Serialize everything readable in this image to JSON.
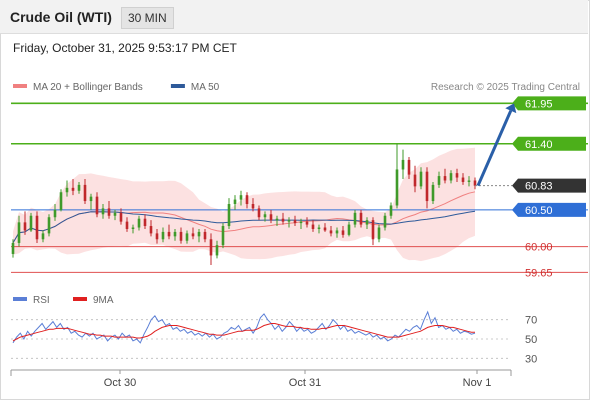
{
  "header": {
    "title": "Crude Oil (WTI)",
    "interval": "30 MIN"
  },
  "datetime": "Friday, October 31, 2025 9:53:17 PM CET",
  "legend_main": [
    {
      "label": "MA 20 + Bollinger Bands",
      "color": "#f08080"
    },
    {
      "label": "MA 50",
      "color": "#2e5a9a"
    }
  ],
  "legend_rsi": [
    {
      "label": "RSI",
      "color": "#5b7fd6"
    },
    {
      "label": "9MA",
      "color": "#e02020"
    }
  ],
  "copyright": "Research © 2025 Trading Central",
  "colors": {
    "resistance": "#4caf1a",
    "pivot": "#2f6fd6",
    "support": "#e05050",
    "last": "#333333",
    "arrow": "#2a5fa8",
    "candle_up": "#3f9a2a",
    "candle_down": "#c0282c",
    "band_fill": "#fbd9d9"
  },
  "chart_data": {
    "type": "candlestick",
    "price_axis": {
      "min": 59.6,
      "max": 62.05
    },
    "levels": [
      {
        "value": 61.95,
        "label": "61.95",
        "kind": "resistance"
      },
      {
        "value": 61.4,
        "label": "61.40",
        "kind": "resistance"
      },
      {
        "value": 60.5,
        "label": "60.50",
        "kind": "pivot"
      },
      {
        "value": 60.0,
        "label": "60.00",
        "kind": "support"
      },
      {
        "value": 59.65,
        "label": "59.65",
        "kind": "support"
      }
    ],
    "last_price": {
      "value": 60.83,
      "label": "60.83"
    },
    "projection": {
      "from": 60.83,
      "to": 61.95
    },
    "x_labels": [
      "Oct 30",
      "Oct 31",
      "Nov 1"
    ],
    "candles": [
      [
        59.9,
        60.1,
        59.85,
        60.05
      ],
      [
        60.05,
        60.42,
        60.0,
        60.33
      ],
      [
        60.33,
        60.48,
        60.16,
        60.22
      ],
      [
        60.22,
        60.46,
        60.2,
        60.42
      ],
      [
        60.42,
        60.48,
        60.05,
        60.1
      ],
      [
        60.1,
        60.22,
        60.06,
        60.18
      ],
      [
        60.18,
        60.44,
        60.14,
        60.4
      ],
      [
        60.4,
        60.58,
        60.35,
        60.5
      ],
      [
        60.5,
        60.78,
        60.48,
        60.74
      ],
      [
        60.74,
        60.9,
        60.68,
        60.8
      ],
      [
        60.8,
        60.92,
        60.7,
        60.76
      ],
      [
        60.76,
        60.88,
        60.72,
        60.84
      ],
      [
        60.84,
        60.92,
        60.58,
        60.62
      ],
      [
        60.62,
        60.72,
        60.5,
        60.68
      ],
      [
        60.68,
        60.74,
        60.4,
        60.44
      ],
      [
        60.44,
        60.58,
        60.38,
        60.52
      ],
      [
        60.52,
        60.62,
        60.38,
        60.42
      ],
      [
        60.42,
        60.5,
        60.36,
        60.46
      ],
      [
        60.46,
        60.52,
        60.3,
        60.34
      ],
      [
        60.34,
        60.4,
        60.2,
        60.24
      ],
      [
        60.24,
        60.3,
        60.18,
        60.26
      ],
      [
        60.26,
        60.42,
        60.22,
        60.38
      ],
      [
        60.38,
        60.44,
        60.24,
        60.28
      ],
      [
        60.28,
        60.36,
        60.14,
        60.18
      ],
      [
        60.18,
        60.24,
        60.04,
        60.1
      ],
      [
        60.1,
        60.26,
        60.06,
        60.2
      ],
      [
        60.2,
        60.3,
        60.1,
        60.14
      ],
      [
        60.14,
        60.24,
        60.08,
        60.2
      ],
      [
        60.2,
        60.26,
        60.04,
        60.08
      ],
      [
        60.08,
        60.22,
        60.04,
        60.18
      ],
      [
        60.18,
        60.26,
        60.1,
        60.14
      ],
      [
        60.14,
        60.24,
        60.06,
        60.2
      ],
      [
        60.2,
        60.24,
        60.06,
        60.1
      ],
      [
        60.1,
        60.18,
        59.75,
        59.88
      ],
      [
        59.88,
        60.08,
        59.84,
        60.02
      ],
      [
        60.02,
        60.32,
        59.98,
        60.28
      ],
      [
        60.28,
        60.66,
        60.24,
        60.58
      ],
      [
        60.58,
        60.7,
        60.5,
        60.64
      ],
      [
        60.64,
        60.76,
        60.56,
        60.7
      ],
      [
        60.7,
        60.74,
        60.52,
        60.58
      ],
      [
        60.58,
        60.66,
        60.48,
        60.52
      ],
      [
        60.52,
        60.56,
        60.36,
        60.4
      ],
      [
        60.4,
        60.48,
        60.34,
        60.44
      ],
      [
        60.44,
        60.5,
        60.32,
        60.36
      ],
      [
        60.36,
        60.42,
        60.28,
        60.38
      ],
      [
        60.38,
        60.46,
        60.3,
        60.34
      ],
      [
        60.34,
        60.4,
        60.26,
        60.36
      ],
      [
        60.36,
        60.42,
        60.28,
        60.32
      ],
      [
        60.32,
        60.38,
        60.24,
        60.34
      ],
      [
        60.34,
        60.4,
        60.26,
        60.3
      ],
      [
        60.3,
        60.36,
        60.2,
        60.24
      ],
      [
        60.24,
        60.3,
        60.18,
        60.26
      ],
      [
        60.26,
        60.32,
        60.2,
        60.22
      ],
      [
        60.22,
        60.28,
        60.14,
        60.18
      ],
      [
        60.18,
        60.26,
        60.12,
        60.22
      ],
      [
        60.22,
        60.28,
        60.12,
        60.16
      ],
      [
        60.16,
        60.34,
        60.14,
        60.3
      ],
      [
        60.3,
        60.5,
        60.26,
        60.46
      ],
      [
        60.46,
        60.5,
        60.26,
        60.3
      ],
      [
        60.3,
        60.4,
        60.24,
        60.36
      ],
      [
        60.36,
        60.4,
        60.02,
        60.1
      ],
      [
        60.1,
        60.3,
        60.06,
        60.26
      ],
      [
        60.26,
        60.46,
        60.22,
        60.42
      ],
      [
        60.42,
        60.6,
        60.38,
        60.56
      ],
      [
        60.56,
        61.4,
        60.52,
        61.05
      ],
      [
        61.05,
        61.32,
        60.92,
        61.18
      ],
      [
        61.18,
        61.22,
        60.92,
        60.98
      ],
      [
        60.98,
        61.1,
        60.74,
        60.82
      ],
      [
        60.82,
        61.08,
        60.78,
        61.02
      ],
      [
        61.02,
        61.08,
        60.52,
        60.62
      ],
      [
        60.62,
        60.88,
        60.58,
        60.84
      ],
      [
        60.84,
        61.02,
        60.8,
        60.96
      ],
      [
        60.96,
        61.06,
        60.86,
        60.9
      ],
      [
        60.9,
        61.04,
        60.86,
        61.0
      ],
      [
        61.0,
        61.06,
        60.88,
        60.94
      ],
      [
        60.94,
        61.0,
        60.84,
        60.88
      ],
      [
        60.88,
        60.96,
        60.82,
        60.9
      ],
      [
        60.9,
        60.94,
        60.78,
        60.83
      ]
    ],
    "rsi_axis": {
      "min": 20,
      "max": 80,
      "ticks": [
        70,
        50,
        30
      ]
    },
    "rsi": [
      46,
      52,
      56,
      50,
      58,
      53,
      58,
      62,
      66,
      60,
      64,
      68,
      62,
      66,
      60,
      62,
      56,
      58,
      54,
      52,
      56,
      53,
      56,
      50,
      52,
      54,
      48,
      52,
      54,
      50,
      56,
      52,
      54,
      48,
      50,
      46,
      55,
      62,
      70,
      74,
      68,
      70,
      64,
      66,
      60,
      62,
      58,
      60,
      56,
      58,
      54,
      56,
      53,
      56,
      52,
      55,
      50,
      52,
      56,
      58,
      62,
      60,
      64,
      58,
      60,
      62,
      56,
      62,
      72,
      76,
      70,
      66,
      60,
      64,
      58,
      62,
      68,
      64,
      58,
      62,
      58,
      60,
      56,
      58,
      62,
      66,
      60,
      64,
      70,
      66,
      60,
      64,
      58,
      60,
      56,
      58,
      56,
      54,
      56,
      52,
      54,
      50,
      52,
      48,
      50,
      54,
      52,
      56,
      60,
      58,
      62,
      64,
      60,
      70,
      78,
      66,
      72,
      62,
      64,
      60,
      62,
      58,
      60,
      56,
      58,
      57,
      55,
      56
    ],
    "rsi_ma": [
      48,
      50,
      52,
      53,
      54,
      55,
      56,
      57,
      58,
      59,
      60,
      60,
      61,
      61,
      61,
      61,
      60,
      59,
      58,
      57,
      56,
      55,
      55,
      54,
      54,
      53,
      53,
      53,
      52,
      52,
      52,
      52,
      52,
      52,
      51,
      51,
      52,
      53,
      55,
      58,
      60,
      62,
      63,
      64,
      64,
      64,
      63,
      62,
      61,
      60,
      59,
      58,
      57,
      56,
      55,
      55,
      54,
      54,
      54,
      55,
      56,
      57,
      58,
      58,
      59,
      59,
      59,
      60,
      62,
      64,
      65,
      66,
      66,
      65,
      64,
      63,
      63,
      63,
      62,
      62,
      61,
      61,
      60,
      60,
      60,
      61,
      61,
      62,
      63,
      64,
      64,
      64,
      63,
      62,
      61,
      60,
      59,
      58,
      57,
      56,
      55,
      54,
      53,
      52,
      52,
      52,
      52,
      53,
      54,
      55,
      56,
      57,
      58,
      60,
      62,
      63,
      64,
      64,
      64,
      63,
      62,
      62,
      61,
      60,
      59,
      58,
      57,
      57
    ]
  }
}
